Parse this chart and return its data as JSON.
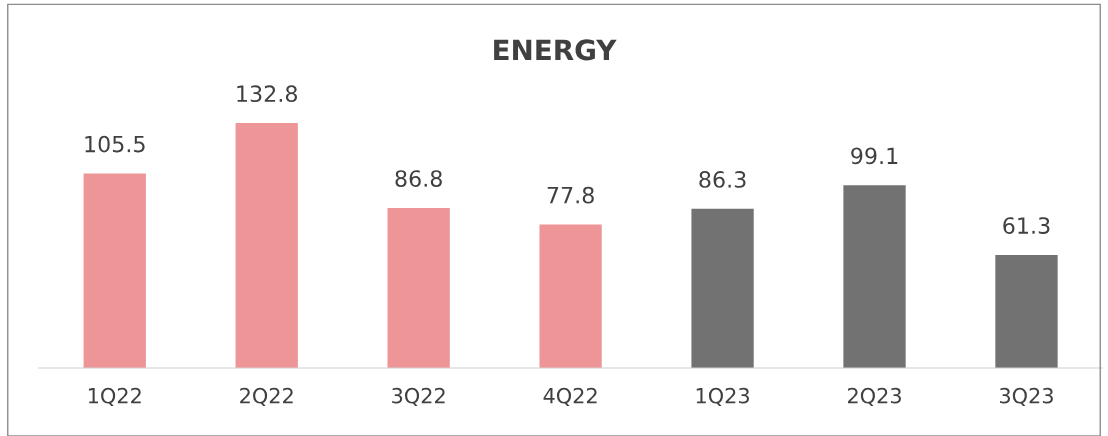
{
  "chart_data": {
    "type": "bar",
    "title": "ENERGY",
    "categories": [
      "1Q22",
      "2Q22",
      "3Q22",
      "4Q22",
      "1Q23",
      "2Q23",
      "3Q23"
    ],
    "values": [
      105.5,
      132.8,
      86.8,
      77.8,
      86.3,
      99.1,
      61.3
    ],
    "colors": [
      "#ee9598",
      "#ee9598",
      "#ee9598",
      "#ee9598",
      "#727272",
      "#727272",
      "#727272"
    ],
    "relative": false,
    "data_labels": true,
    "grid": false,
    "legend": false
  }
}
